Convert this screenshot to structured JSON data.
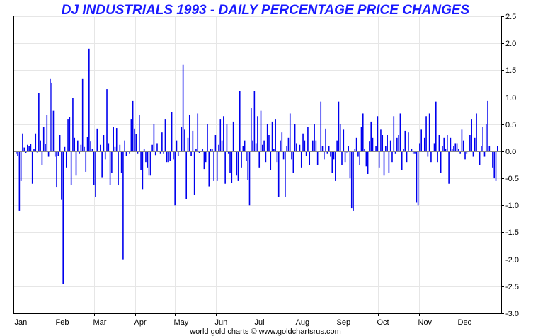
{
  "chart_data": {
    "type": "bar",
    "title": "DJ INDUSTRIALS 1993 - DAILY PERCENTAGE PRICE CHANGES",
    "credit": "world gold charts © www.goldchartsrus.com",
    "xlabel": "",
    "ylabel": "",
    "ylim": [
      -3.0,
      2.5
    ],
    "ytick_step": 0.5,
    "y_axis_side": "right",
    "grid": true,
    "legend": "none",
    "bar_color": "#0000ee",
    "title_color": "#1a1aff",
    "months": [
      "Jan",
      "Feb",
      "Mar",
      "Apr",
      "May",
      "Jun",
      "Jul",
      "Aug",
      "Sep",
      "Oct",
      "Nov",
      "Dec"
    ],
    "values": [
      -0.05,
      -0.08,
      -1.1,
      -0.55,
      0.33,
      0.07,
      -0.04,
      0.12,
      0.1,
      0.13,
      -0.6,
      0.05,
      0.33,
      -0.02,
      1.08,
      0.2,
      -0.25,
      0.45,
      0.14,
      0.67,
      -0.1,
      1.35,
      1.27,
      0.75,
      -0.1,
      -0.67,
      -0.08,
      0.3,
      -0.9,
      -2.45,
      0.08,
      -0.3,
      0.6,
      0.63,
      -0.62,
      0.99,
      0.25,
      -0.45,
      0.2,
      -0.05,
      0.12,
      1.35,
      0.08,
      -0.38,
      0.27,
      1.9,
      0.18,
      0.05,
      -0.62,
      -0.85,
      0.42,
      0.0,
      0.12,
      -0.48,
      0.3,
      -0.15,
      1.15,
      0.15,
      -0.62,
      -0.4,
      0.45,
      0.08,
      0.43,
      -0.63,
      0.12,
      -0.4,
      -2.0,
      0.2,
      -0.08,
      0.0,
      -0.05,
      0.6,
      0.93,
      0.42,
      0.32,
      -0.05,
      0.67,
      -0.35,
      -0.7,
      0.05,
      -0.2,
      -0.3,
      -0.45,
      -0.45,
      0.12,
      0.5,
      -0.07,
      0.15,
      0.0,
      -0.05,
      0.35,
      -0.05,
      0.6,
      -0.2,
      -0.2,
      -0.18,
      0.73,
      -0.15,
      -1.0,
      0.2,
      -0.08,
      0.0,
      0.45,
      1.6,
      0.4,
      -0.88,
      0.25,
      0.68,
      -0.08,
      0.38,
      -0.8,
      0.05,
      0.7,
      -0.03,
      0.0,
      0.05,
      -0.33,
      -0.2,
      0.5,
      -0.65,
      0.05,
      0.05,
      -0.55,
      0.3,
      -0.55,
      0.12,
      0.6,
      0.2,
      0.65,
      -0.6,
      0.5,
      -0.05,
      -0.4,
      -0.58,
      0.55,
      0.0,
      -0.45,
      -0.55,
      1.12,
      -0.3,
      0.1,
      0.2,
      -0.18,
      -0.53,
      -1.0,
      0.8,
      0.2,
      1.12,
      0.15,
      0.65,
      -0.3,
      0.75,
      0.12,
      0.2,
      -0.2,
      0.5,
      0.3,
      -0.35,
      0.55,
      0.05,
      0.6,
      -0.2,
      -0.85,
      0.2,
      0.35,
      -0.15,
      -0.85,
      0.1,
      0.25,
      0.7,
      -0.15,
      -0.4,
      0.5,
      0.15,
      0.0,
      0.12,
      -0.3,
      0.33,
      0.2,
      -0.08,
      0.45,
      -0.25,
      0.0,
      0.2,
      0.5,
      0.2,
      -0.25,
      0.0,
      0.92,
      0.1,
      -0.15,
      0.42,
      -0.05,
      0.1,
      -0.1,
      -0.4,
      -0.15,
      -0.55,
      0.2,
      0.92,
      0.5,
      -0.25,
      0.4,
      -0.2,
      -0.02,
      0.1,
      -0.5,
      -1.05,
      -1.1,
      0.05,
      0.25,
      -0.1,
      -0.25,
      0.45,
      0.7,
      0.05,
      -0.28,
      -0.42,
      0.18,
      0.55,
      0.25,
      0.0,
      0.1,
      0.65,
      -0.3,
      0.4,
      0.3,
      -0.45,
      0.1,
      0.3,
      -0.4,
      0.2,
      -0.2,
      0.65,
      -0.05,
      0.25,
      0.3,
      0.7,
      -0.35,
      0.05,
      0.38,
      -0.2,
      0.35,
      0.0,
      0.05,
      -0.05,
      -0.05,
      -0.95,
      -1.0,
      0.15,
      0.4,
      0.0,
      0.25,
      0.65,
      -0.1,
      0.7,
      -0.2,
      0.0,
      0.15,
      0.92,
      -0.2,
      0.3,
      -0.4,
      0.1,
      0.25,
      0.05,
      0.3,
      -0.6,
      0.25,
      0.05,
      0.1,
      0.15,
      0.15,
      0.05,
      -0.05,
      0.4,
      0.2,
      -0.15,
      -0.05,
      0.0,
      0.3,
      0.6,
      -0.1,
      0.25,
      0.7,
      0.0,
      -0.25,
      0.1,
      0.45,
      -0.1,
      0.5,
      0.93,
      0.1,
      0.0,
      -0.3,
      -0.5,
      -0.55,
      0.1
    ]
  }
}
